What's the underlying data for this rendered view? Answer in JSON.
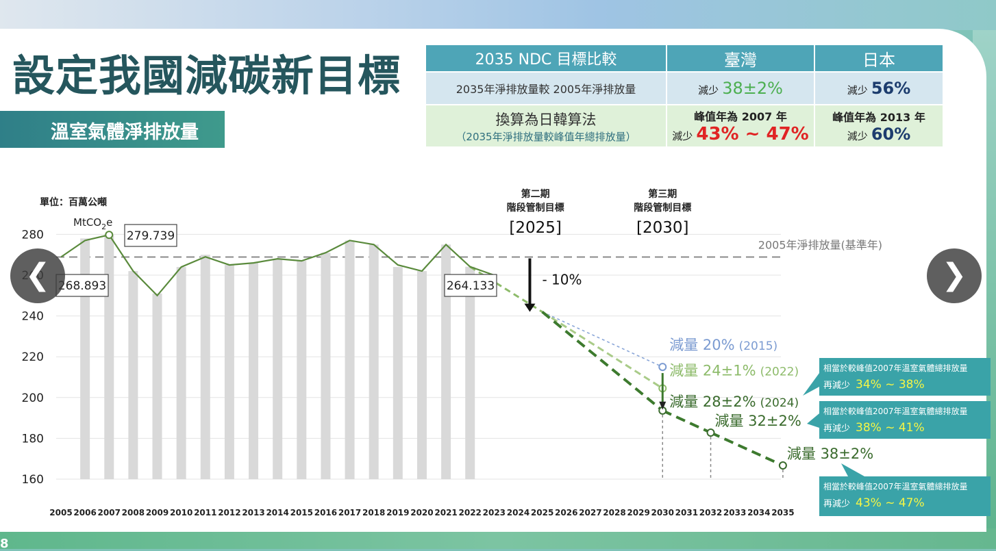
{
  "title": "設定我國減碳新目標",
  "subtitle": "溫室氣體淨排放量",
  "page_number": "8",
  "nav": {
    "prev_glyph": "❮",
    "next_glyph": "❯"
  },
  "ndc_table": {
    "header": [
      "2035 NDC 目標比較",
      "臺灣",
      "日本"
    ],
    "row1": {
      "label": "2035年淨排放量較 2005年淨排放量",
      "tw_prefix": "減少",
      "tw_value": "38±2%",
      "jp_prefix": "減少",
      "jp_value": "56%"
    },
    "row2": {
      "label_main": "換算為日韓算法",
      "label_sub": "（2035年淨排放量較峰值年總排放量）",
      "tw_peak": "峰值年為 2007 年",
      "tw_prefix": "減少",
      "tw_value": "43% ~ 47%",
      "jp_peak": "峰值年為 2013 年",
      "jp_prefix": "減少",
      "jp_value": "60%"
    }
  },
  "chart_data": {
    "type": "bar",
    "unit_label": "單位：百萬公噸",
    "unit_sub": "MtCO",
    "unit_sub2": "2",
    "unit_sub3": "e",
    "ylim": [
      160,
      285
    ],
    "yticks": [
      160,
      180,
      200,
      220,
      240,
      260,
      280
    ],
    "xlabels": [
      "2005",
      "2006",
      "2007",
      "2008",
      "2009",
      "2010",
      "2011",
      "2012",
      "2013",
      "2014",
      "2015",
      "2016",
      "2017",
      "2018",
      "2019",
      "2020",
      "2021",
      "2022",
      "2023",
      "2024",
      "2025",
      "2026",
      "2027",
      "2028",
      "2029",
      "2030",
      "2031",
      "2032",
      "2033",
      "2034",
      "2035"
    ],
    "bars": [
      {
        "x": "2006",
        "y": 278
      },
      {
        "x": "2007",
        "y": 279.739
      },
      {
        "x": "2008",
        "y": 262
      },
      {
        "x": "2009",
        "y": 251
      },
      {
        "x": "2010",
        "y": 264
      },
      {
        "x": "2011",
        "y": 270
      },
      {
        "x": "2012",
        "y": 265
      },
      {
        "x": "2013",
        "y": 266
      },
      {
        "x": "2014",
        "y": 268
      },
      {
        "x": "2015",
        "y": 267
      },
      {
        "x": "2016",
        "y": 271
      },
      {
        "x": "2017",
        "y": 277
      },
      {
        "x": "2018",
        "y": 275
      },
      {
        "x": "2019",
        "y": 264
      },
      {
        "x": "2020",
        "y": 262
      },
      {
        "x": "2021",
        "y": 275
      },
      {
        "x": "2022",
        "y": 264.133
      }
    ],
    "net_line": [
      {
        "x": "2005",
        "y": 268.893
      },
      {
        "x": "2006",
        "y": 277
      },
      {
        "x": "2007",
        "y": 279.739
      },
      {
        "x": "2008",
        "y": 262
      },
      {
        "x": "2009",
        "y": 250
      },
      {
        "x": "2010",
        "y": 264
      },
      {
        "x": "2011",
        "y": 269
      },
      {
        "x": "2012",
        "y": 265
      },
      {
        "x": "2013",
        "y": 266
      },
      {
        "x": "2014",
        "y": 268
      },
      {
        "x": "2015",
        "y": 267
      },
      {
        "x": "2016",
        "y": 271
      },
      {
        "x": "2017",
        "y": 277
      },
      {
        "x": "2018",
        "y": 275
      },
      {
        "x": "2019",
        "y": 265
      },
      {
        "x": "2020",
        "y": 262
      },
      {
        "x": "2021",
        "y": 275
      },
      {
        "x": "2022",
        "y": 264.133
      },
      {
        "x": "2023",
        "y": 260
      }
    ],
    "baseline": {
      "value": 268.893,
      "label": "2005年淨排放量(基準年)"
    },
    "point_labels": [
      {
        "text": "279.739"
      },
      {
        "text": "268.893"
      },
      {
        "text": "264.133"
      }
    ],
    "stages": [
      {
        "line1": "第二期",
        "line2": "階段管制目標",
        "year": "[2025]"
      },
      {
        "line1": "第三期",
        "line2": "階段管制目標",
        "year": "[2030]"
      }
    ],
    "arrow_label": "- 10%",
    "targets": [
      {
        "label": "減量 20%",
        "note": "(2015)",
        "x": "2030",
        "y": 215,
        "color": "#7b9bd1"
      },
      {
        "label": "減量 24±1%",
        "note": "(2022)",
        "x": "2030",
        "y": 204.5,
        "color": "#8dbb6a"
      },
      {
        "label": "減量 28±2%",
        "note": "(2024)",
        "x": "2030",
        "y": 193.6,
        "color": "#3a6b2d"
      },
      {
        "label": "減量 32±2%",
        "note": "",
        "x": "2032",
        "y": 182.8,
        "color": "#3a6b2d"
      },
      {
        "label": "減量 38±2%",
        "note": "",
        "x": "2035",
        "y": 166.7,
        "color": "#3a6b2d"
      }
    ],
    "callouts": [
      {
        "line1": "相當於較峰值2007年溫室氣體總排放量",
        "prefix": "再減少",
        "value": "34% ~ 38%"
      },
      {
        "line1": "相當於較峰值2007年溫室氣體總排放量",
        "prefix": "再減少",
        "value": "38% ~ 41%"
      },
      {
        "line1": "相當於較峰值2007年溫室氣體總排放量",
        "prefix": "再減少",
        "value": "43% ~ 47%"
      }
    ],
    "colors": {
      "bar": "#d9d9d9",
      "line": "#5a8a3c",
      "baseline": "#8a8a8a",
      "callout": "#3aa3a8",
      "callout_value": "#f5f545"
    }
  }
}
